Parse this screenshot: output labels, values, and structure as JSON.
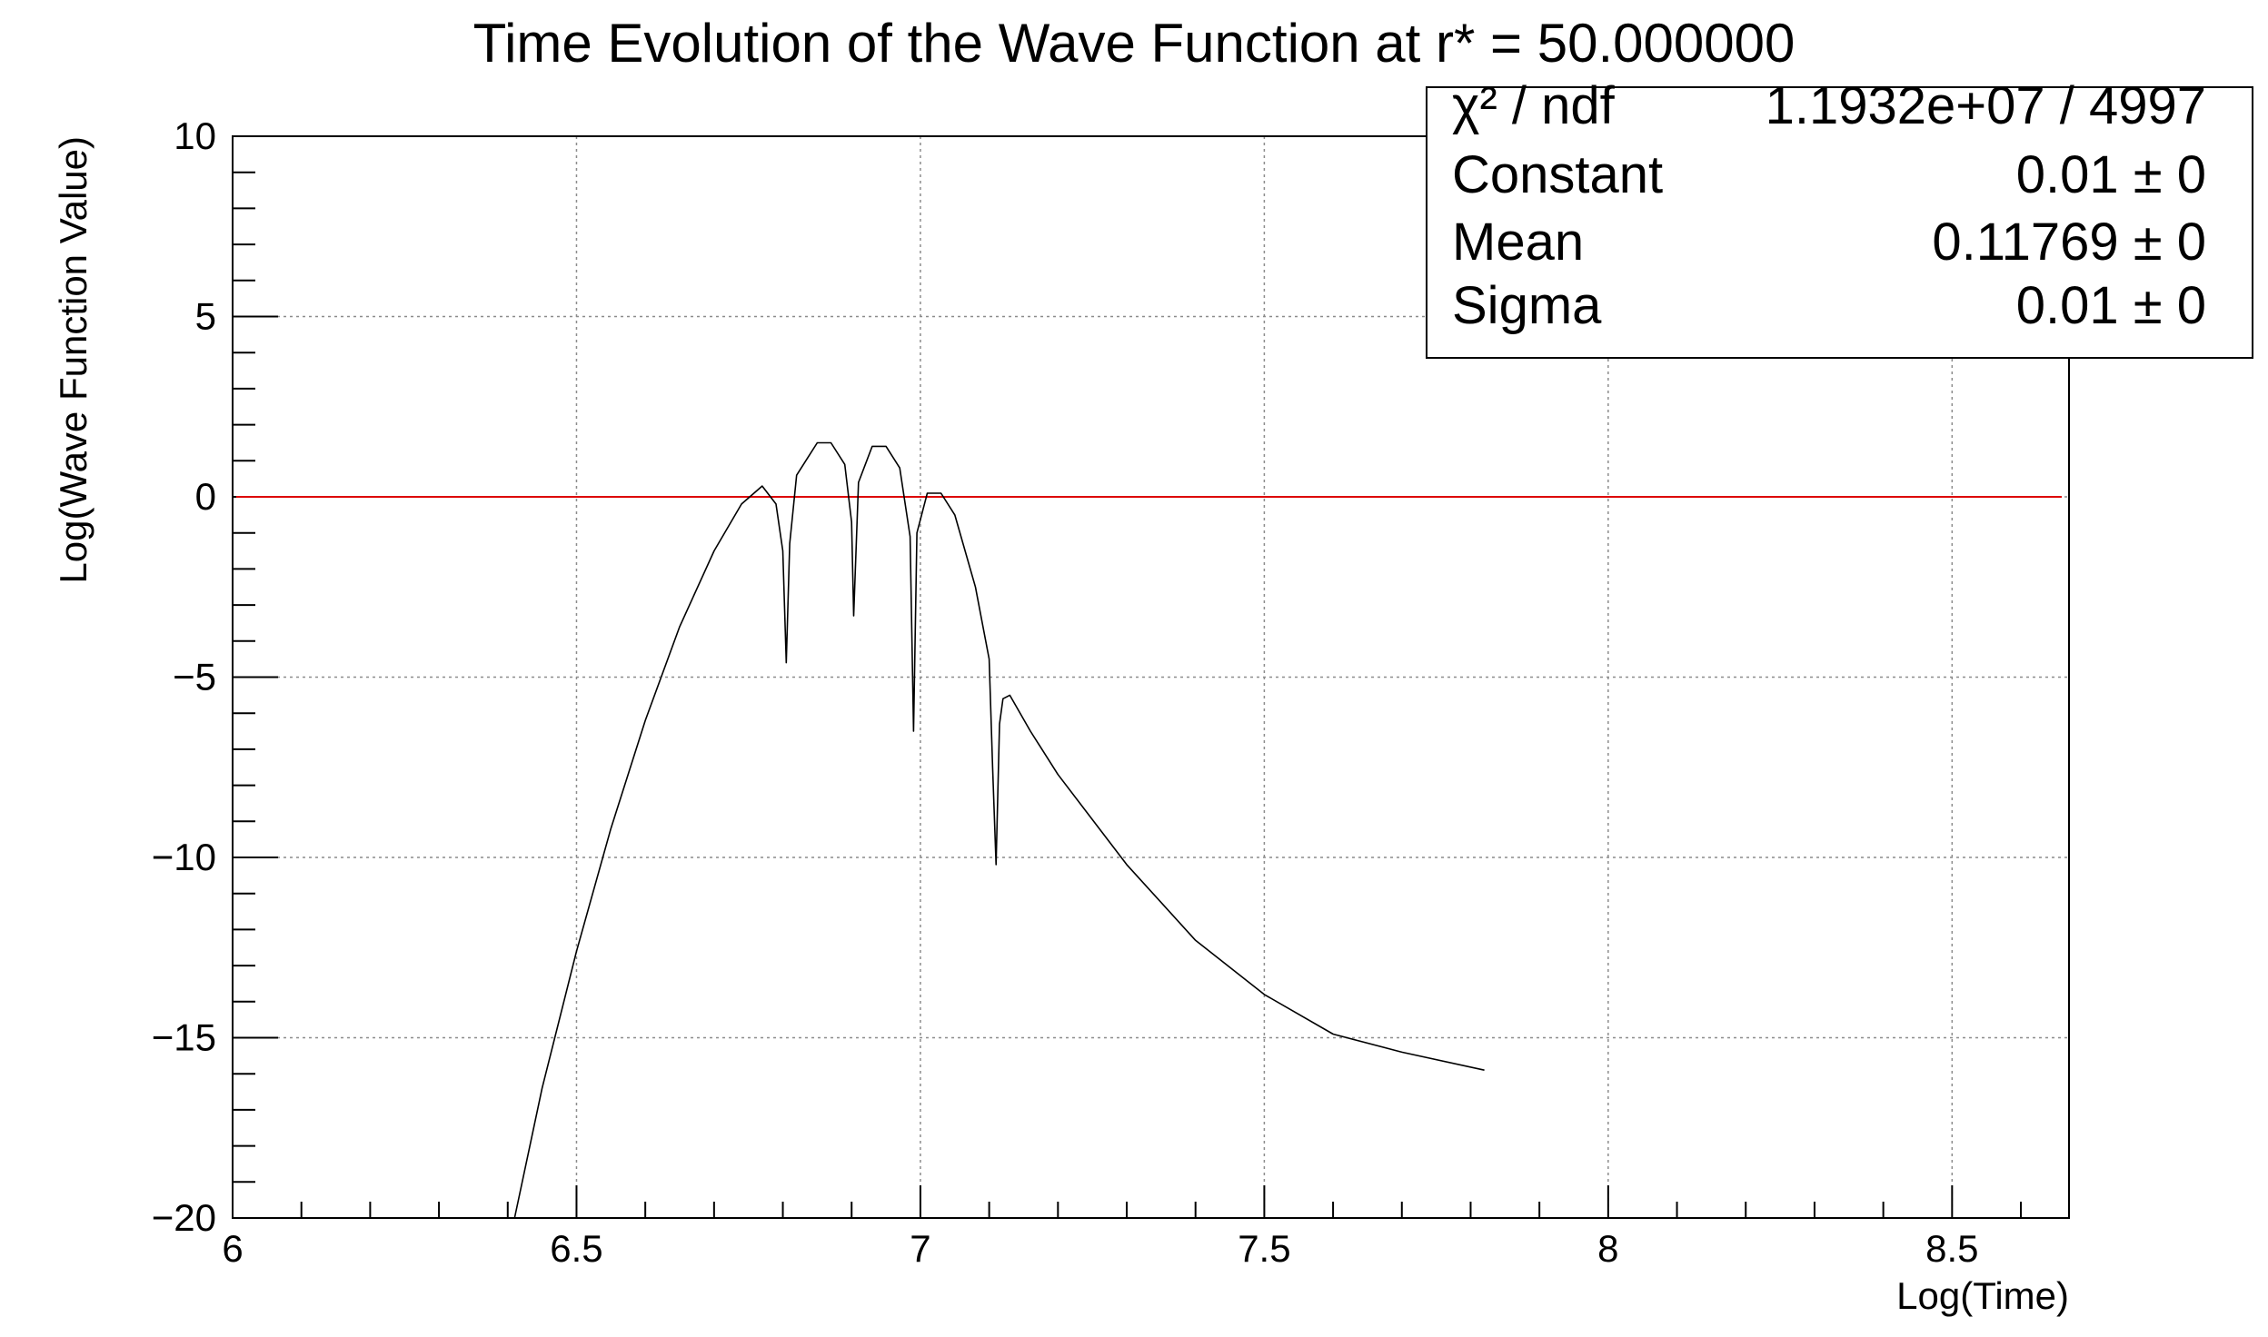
{
  "title": "Time Evolution of the Wave Function at r* = 50.000000",
  "chart_data": {
    "type": "line",
    "title": "Time Evolution of the Wave Function at r* = 50.000000",
    "xlabel": "Log(Time)",
    "ylabel": "Log(Wave Function Value)",
    "xlim": [
      6.0,
      8.67
    ],
    "ylim": [
      -20,
      10
    ],
    "x_ticks": [
      6,
      6.5,
      7,
      7.5,
      8,
      8.5
    ],
    "x_tick_labels": [
      "6",
      "6.5",
      "7",
      "7.5",
      "8",
      "8.5"
    ],
    "y_ticks": [
      -20,
      -15,
      -10,
      -5,
      0,
      5,
      10
    ],
    "y_tick_labels": [
      "−20",
      "−15",
      "−10",
      "−5",
      "0",
      "5",
      "10"
    ],
    "grid": true,
    "series": [
      {
        "color": "#000000",
        "x": [
          6.41,
          6.45,
          6.5,
          6.55,
          6.6,
          6.65,
          6.7,
          6.74,
          6.77,
          6.79,
          6.8,
          6.805,
          6.81,
          6.82,
          6.85,
          6.87,
          6.89,
          6.9,
          6.903,
          6.91,
          6.93,
          6.95,
          6.97,
          6.985,
          6.99,
          6.995,
          7.01,
          7.03,
          7.05,
          7.08,
          7.1,
          7.105,
          7.11,
          7.115,
          7.12,
          7.13,
          7.16,
          7.2,
          7.3,
          7.4,
          7.5,
          7.6,
          7.7,
          7.82
        ],
        "y": [
          -20.0,
          -16.4,
          -12.6,
          -9.2,
          -6.2,
          -3.6,
          -1.5,
          -0.2,
          0.3,
          -0.2,
          -1.5,
          -4.6,
          -1.3,
          0.6,
          1.5,
          1.5,
          0.9,
          -0.7,
          -3.3,
          0.4,
          1.4,
          1.4,
          0.8,
          -1.1,
          -6.5,
          -1.0,
          0.1,
          0.1,
          -0.5,
          -2.5,
          -4.5,
          -7.5,
          -10.2,
          -6.3,
          -5.6,
          -5.5,
          -6.5,
          -7.7,
          -10.2,
          -12.3,
          -13.8,
          -14.9,
          -15.4,
          -15.9
        ]
      }
    ],
    "reference_line": {
      "y": 0,
      "x_start": 6.0,
      "x_end": 8.67,
      "color": "#dd0000"
    },
    "stats_box": {
      "rows": [
        {
          "label": "χ² / ndf",
          "value": "1.1932e+07 / 4997"
        },
        {
          "label": "Constant",
          "value": "0.01 ± 0"
        },
        {
          "label": "Mean",
          "value": "0.11769 ± 0"
        },
        {
          "label": "Sigma",
          "value": "0.01 ± 0"
        }
      ]
    }
  }
}
